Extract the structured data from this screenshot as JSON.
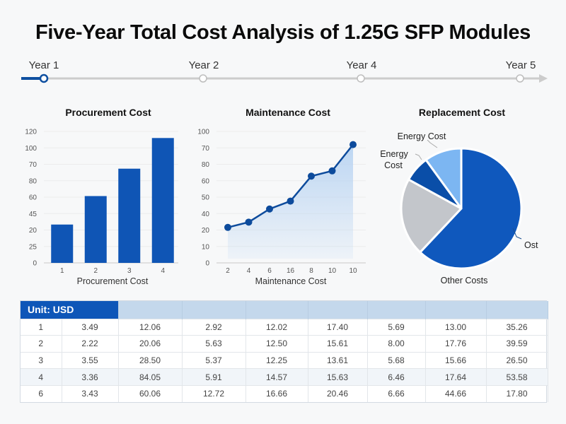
{
  "title": "Five-Year Total Cost Analysis of 1.25G SFP Modules",
  "timeline": {
    "labels": [
      "Year 1",
      "Year 2",
      "Year 4",
      "Year 5"
    ],
    "active_index": 0,
    "accent_color": "#0e4fa0",
    "track_color": "#cccccc"
  },
  "chart_data": [
    {
      "type": "bar",
      "title": "Procurement Cost",
      "xlabel": "Procurement Cost",
      "ylabel": "",
      "categories": [
        "1",
        "2",
        "3",
        "4"
      ],
      "values": [
        35,
        61,
        86,
        114
      ],
      "ylim": [
        0,
        120
      ],
      "y_tick_labels": [
        "0",
        "25",
        "20",
        "45",
        "60",
        "80",
        "70",
        "100",
        "120"
      ],
      "grid": true,
      "color": "#0f55b5"
    },
    {
      "type": "area",
      "title": "Maintenance Cost",
      "xlabel": "Maintenance Cost",
      "ylabel": "",
      "categories": [
        "2",
        "4",
        "6",
        "16",
        "8",
        "10",
        "10"
      ],
      "values": [
        27,
        31,
        41,
        47,
        66,
        70,
        90
      ],
      "ylim": [
        0,
        100
      ],
      "y_tick_labels": [
        "0",
        "10",
        "20",
        "40",
        "50",
        "60",
        "80",
        "70",
        "100"
      ],
      "grid": true,
      "color": "#0d4b9c",
      "fill_color": "#b9d4f2"
    },
    {
      "type": "pie",
      "title": "Replacement Cost",
      "slices": [
        {
          "label": "Ost",
          "value": 62,
          "color": "#0f58bd"
        },
        {
          "label": "Other Costs",
          "value": 21,
          "color": "#c3c6cb"
        },
        {
          "label": "Energy Cost",
          "value": 7,
          "color": "#0a4ea8"
        },
        {
          "label": "Energy Cost",
          "value": 10,
          "color": "#7cb6f2"
        }
      ],
      "labels": {
        "top": "Energy Cost",
        "left_line1": "Energy",
        "left_line2": "Cost",
        "right": "Ost",
        "bottom": "Other Costs"
      }
    }
  ],
  "table": {
    "unit_label": "Unit: USD",
    "header_color": "#c4d8ec",
    "unit_color": "#0e56b8",
    "rows": [
      [
        "1",
        "3.49",
        "12.06",
        "2.92",
        "12.02",
        "17.40",
        "5.69",
        "13.00",
        "35.26"
      ],
      [
        "2",
        "2.22",
        "20.06",
        "5.63",
        "12.50",
        "15.61",
        "8.00",
        "17.76",
        "39.59"
      ],
      [
        "3",
        "3.55",
        "28.50",
        "5.37",
        "12.25",
        "13.61",
        "5.68",
        "15.66",
        "26.50"
      ],
      [
        "4",
        "3.36",
        "84.05",
        "5.91",
        "14.57",
        "15.63",
        "6.46",
        "17.64",
        "53.58"
      ],
      [
        "6",
        "3.43",
        "60.06",
        "12.72",
        "16.66",
        "20.46",
        "6.66",
        "44.66",
        "17.80"
      ]
    ]
  }
}
